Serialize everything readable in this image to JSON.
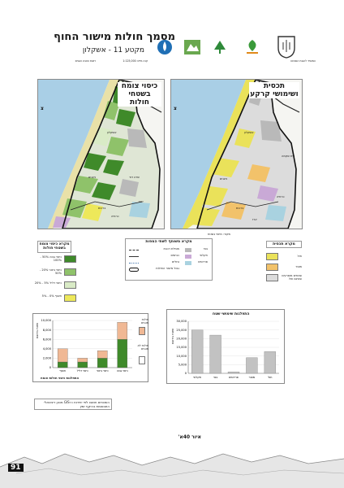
{
  "header": {
    "title": "מסמך חולות מישור החוף",
    "subtitle": "מקטע 11 - אשקלון",
    "scale_note": "קנה מידה 1:125,000",
    "source_note": "רשות הטבע והגנים",
    "publisher_note": "המשרד להגנת הסביבה"
  },
  "logos": [
    {
      "name": "ministry-emblem",
      "label": "המשרד להגנת הסביבה"
    },
    {
      "name": "nature-parks-logo",
      "label": "רשות הטבע והגנים"
    },
    {
      "name": "kkl-logo",
      "label": "קק\"ל"
    },
    {
      "name": "spni-logo",
      "label": "החברה להגנת הטבע"
    },
    {
      "name": "planning-logo",
      "label": "מנהל התכנון"
    }
  ],
  "maps": [
    {
      "id": "cover",
      "title_line1": "כיסוי צומח",
      "title_line2": "בשטחי חולות",
      "places": [
        "אשקלון",
        "ניצנים",
        "ברכות",
        "שדה דוד",
        "ארז",
        "כרמיה"
      ]
    },
    {
      "id": "planning",
      "title_line1": "תכסית",
      "title_line2": "ושימושי קרקע",
      "places": [
        "אשקלון",
        "בית שקמה",
        "ברכות",
        "ניצנים",
        "כרמיה",
        "ארז"
      ]
    }
  ],
  "north_label": "צ",
  "map_footnote": "מקור: מיפוי בשטח",
  "legend_cover": {
    "title": "מקרא כיסוי צומח בשטחי חולות",
    "items": [
      {
        "label": "כיסוי גבוה 50% - 100%",
        "color": "#3f8a2a"
      },
      {
        "label": "כיסוי בינוני 20% - 50%",
        "color": "#8fc26a"
      },
      {
        "label": "כיסוי דליל 5% - 20%",
        "color": "#d9ebc6"
      },
      {
        "label": "חשוף 0% - 5%",
        "color": "#ede85a"
      }
    ]
  },
  "legend_common": {
    "title": "מקרא משותף לשתי המפות",
    "items": [
      {
        "label": "בנוי",
        "color": "#b9b9b9"
      },
      {
        "label": "חקלאי",
        "color": "#c9a9d6"
      },
      {
        "label": "פרדסים",
        "color": "#a9d2e0"
      },
      {
        "label": "מסילת רכבת",
        "color": "line"
      },
      {
        "label": "כבישים",
        "color": "line"
      },
      {
        "label": "נחלים",
        "color": "line"
      },
      {
        "label": "גבול מישור החולות",
        "color": "outline"
      }
    ]
  },
  "legend_planning": {
    "title": "מקרא תכסית",
    "items": [
      {
        "label": "חול",
        "color": "#eae25a"
      },
      {
        "label": "מופר",
        "color": "#f2c26a"
      },
      {
        "label": "שטחים מופרעים שאינם חול",
        "color": "#dcdcdc"
      }
    ]
  },
  "chart_data": [
    {
      "type": "bar",
      "title": "התפלגות כיסוי חולות צומח",
      "xlabel": "",
      "ylabel": "שטח בדונם",
      "categories": [
        "כיסוי גבוה",
        "כיסוי בינוני",
        "כיסוי דליל",
        "חשוף"
      ],
      "ylim": [
        0,
        10000
      ],
      "yticks": [
        0,
        2000,
        4000,
        6000,
        8000,
        10000
      ],
      "series": [
        {
          "name": "חולות מוגנים",
          "color": "#3f8a2a",
          "values": [
            6000,
            2000,
            1200,
            1200
          ]
        },
        {
          "name": "חולות לא מוגנים",
          "color": "#f0b894",
          "values": [
            3600,
            1600,
            800,
            2800
          ]
        }
      ],
      "legend_title": "חולות מוגנים",
      "legend_items": [
        "חולות לא מוגנים"
      ]
    },
    {
      "type": "bar",
      "title": "התפלגות שימושי שטח",
      "xlabel": "",
      "ylabel": "שטח בדונם",
      "categories": [
        "חול",
        "מופר",
        "פרדסים",
        "בנוי",
        "חקלאי"
      ],
      "values": [
        12500,
        9000,
        800,
        22000,
        25000
      ],
      "ylim": [
        0,
        30000
      ],
      "yticks": [
        0,
        5000,
        10000,
        15000,
        20000,
        25000,
        30000
      ],
      "color": "#c2c2c2"
    }
  ],
  "chart_note": "השטחים חושבו לפי יחידות ה-GIS מכוון דיגיטאלי התבססות בהיקף זמין",
  "caption": "איור 40א'",
  "page_number": "91"
}
